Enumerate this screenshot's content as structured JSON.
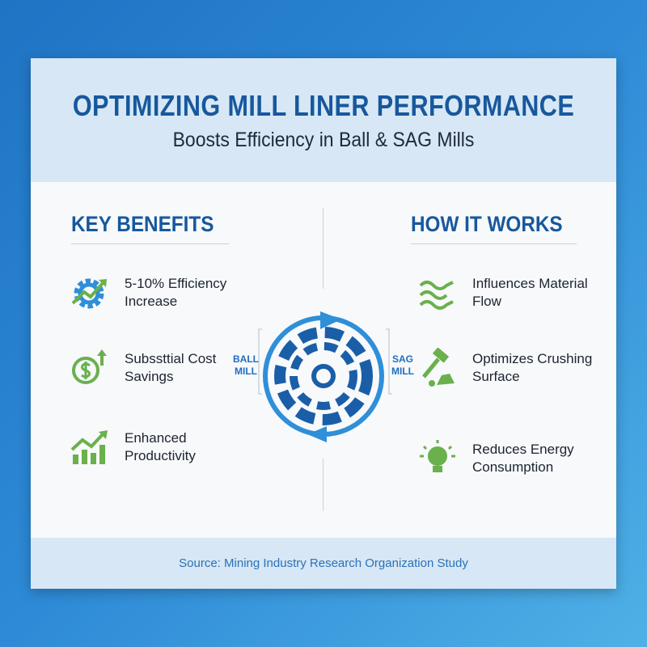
{
  "header": {
    "title": "OPTIMIZING MILL LINER PERFORMANCE",
    "subtitle": "Boosts Efficiency in Ball & SAG Mills"
  },
  "benefits": {
    "heading": "KEY BENEFITS",
    "items": [
      {
        "icon": "gear-trend-icon",
        "line1": "5-10% Efficiency",
        "line2": "Increase"
      },
      {
        "icon": "dollar-up-icon",
        "line1": "Subssttial Cost",
        "line2": "Savings"
      },
      {
        "icon": "bar-chart-up-icon",
        "line1": "Enhanced",
        "line2": "Productivity"
      }
    ]
  },
  "how": {
    "heading": "HOW IT WORKS",
    "items": [
      {
        "icon": "flow-waves-icon",
        "line1": "Influences Material",
        "line2": "Flow"
      },
      {
        "icon": "hammer-rock-icon",
        "line1": "Optimizes Crushing",
        "line2": "Surface"
      },
      {
        "icon": "lightbulb-icon",
        "line1": "Reduces Energy",
        "line2": "Consumption"
      }
    ]
  },
  "diagram": {
    "left_label_1": "BALL",
    "left_label_2": "MILL",
    "right_label_1": "SAG",
    "right_label_2": "MILL"
  },
  "footer": {
    "source": "Source: Mining Industry Research Organization Study"
  },
  "colors": {
    "primary": "#17589d",
    "accent": "#2f8fd8",
    "green": "#6ab04c",
    "band": "#d7e7f5"
  }
}
